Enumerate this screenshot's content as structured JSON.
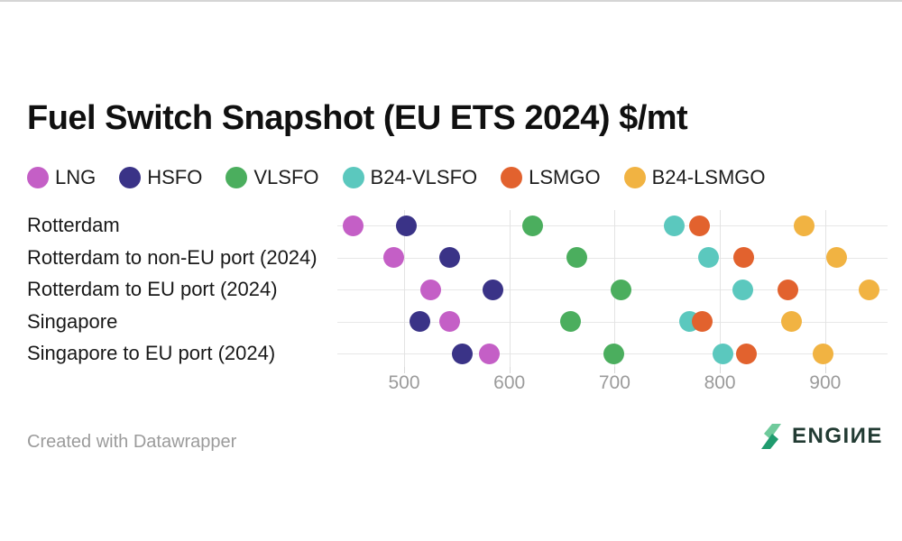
{
  "page": {
    "title": "Fuel Switch Snapshot (EU ETS 2024) $/mt"
  },
  "footer": {
    "credit": "Created with Datawrapper",
    "brand": "ENGIИE"
  },
  "colors": {
    "background": "#ffffff",
    "gridline": "#e3e3e3",
    "row_line": "#e7e7e7",
    "tick_text": "#9b9b9b",
    "label_text": "#191919",
    "brand_dark_green": "#1f9b6e",
    "brand_light_green": "#6fca9b",
    "brand_text": "#223b33"
  },
  "chart_data": {
    "type": "scatter",
    "title": "Fuel Switch Snapshot (EU ETS 2024) $/mt",
    "unit": "$/mt",
    "legend_position": "top",
    "grid": "vertical",
    "categories": [
      "Rotterdam",
      "Rotterdam to non-EU port (2024)",
      "Rotterdam to EU port (2024)",
      "Singapore",
      "Singapore to EU port (2024)"
    ],
    "series": [
      {
        "name": "LNG",
        "color": "#c45fc6",
        "values": [
          452,
          490,
          525,
          543,
          581
        ]
      },
      {
        "name": "HSFO",
        "color": "#3a3387",
        "values": [
          502,
          543,
          584,
          515,
          555
        ]
      },
      {
        "name": "VLSFO",
        "color": "#4bae5e",
        "values": [
          622,
          664,
          706,
          658,
          699
        ]
      },
      {
        "name": "B24-VLSFO",
        "color": "#5bc8be",
        "values": [
          757,
          789,
          822,
          771,
          803
        ]
      },
      {
        "name": "LSMGO",
        "color": "#e2622e",
        "values": [
          781,
          823,
          865,
          783,
          825
        ]
      },
      {
        "name": "B24-LSMGO",
        "color": "#f1b342",
        "values": [
          880,
          911,
          942,
          868,
          898
        ]
      }
    ],
    "x_ticks": [
      500,
      600,
      700,
      800,
      900
    ],
    "x_tick_labels": [
      "500",
      "600",
      "700",
      "800",
      "900"
    ],
    "x_range": [
      437,
      960
    ]
  }
}
